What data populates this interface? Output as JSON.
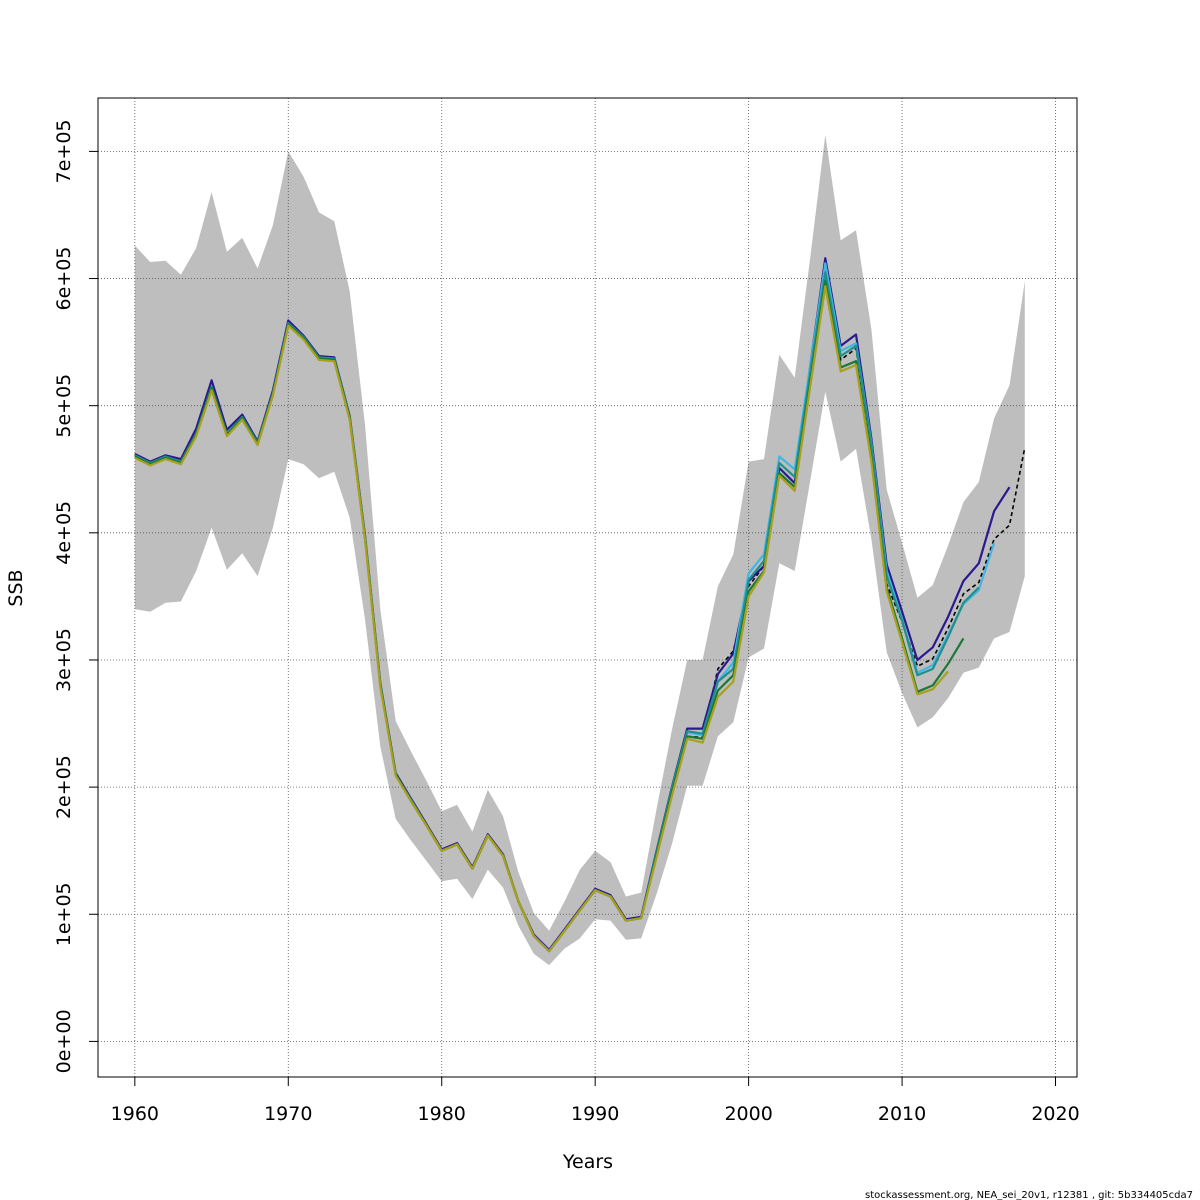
{
  "chart_data": {
    "type": "line",
    "title": "",
    "xlabel": "Years",
    "ylabel": "SSB",
    "xlim": [
      1957.6,
      2021.4
    ],
    "ylim": [
      -28000,
      742000
    ],
    "xticks": [
      1960,
      1970,
      1980,
      1990,
      2000,
      2010,
      2020
    ],
    "xtick_labels": [
      "1960",
      "1970",
      "1980",
      "1990",
      "2000",
      "2010",
      "2020"
    ],
    "yticks": [
      0,
      100000,
      200000,
      300000,
      400000,
      500000,
      600000,
      700000
    ],
    "ytick_labels": [
      "0e+00",
      "1e+05",
      "2e+05",
      "3e+05",
      "4e+05",
      "5e+05",
      "6e+05",
      "7e+05"
    ],
    "grid": true,
    "footer": "stockassessment.org, NEA_sei_20v1, r12381 , git: 5b334405cda7",
    "band": {
      "name": "confidence interval",
      "color": "#bebebe",
      "x": [
        1960,
        1961,
        1962,
        1963,
        1964,
        1965,
        1966,
        1967,
        1968,
        1969,
        1970,
        1971,
        1972,
        1973,
        1974,
        1975,
        1976,
        1977,
        1978,
        1979,
        1980,
        1981,
        1982,
        1983,
        1984,
        1985,
        1986,
        1987,
        1988,
        1989,
        1990,
        1991,
        1992,
        1993,
        1994,
        1995,
        1996,
        1997,
        1998,
        1999,
        2000,
        2001,
        2002,
        2003,
        2004,
        2005,
        2006,
        2007,
        2008,
        2009,
        2010,
        2011,
        2012,
        2013,
        2014,
        2015,
        2016,
        2017,
        2018
      ],
      "upper": [
        626000,
        613000,
        614000,
        603000,
        624000,
        668000,
        621000,
        632000,
        608000,
        642000,
        700000,
        680000,
        652000,
        645000,
        590000,
        485000,
        340000,
        252000,
        228000,
        205000,
        181000,
        186000,
        165000,
        198000,
        177000,
        133000,
        101000,
        87000,
        110000,
        135000,
        150000,
        141000,
        114000,
        117000,
        183000,
        245000,
        300000,
        300000,
        358000,
        383000,
        456000,
        458000,
        540000,
        522000,
        615000,
        713000,
        630000,
        638000,
        560000,
        434000,
        392000,
        349000,
        359000,
        390000,
        424000,
        440000,
        490000,
        516000,
        598000
      ],
      "lower": [
        340000,
        338000,
        345000,
        346000,
        370000,
        404000,
        371000,
        384000,
        366000,
        404000,
        458000,
        454000,
        443000,
        448000,
        412000,
        332000,
        232000,
        175000,
        158000,
        142000,
        126000,
        128000,
        112000,
        135000,
        121000,
        91000,
        69000,
        60000,
        73000,
        81000,
        96000,
        95000,
        80000,
        81000,
        116000,
        155000,
        201000,
        201000,
        240000,
        251000,
        302000,
        309000,
        376000,
        370000,
        440000,
        511000,
        456000,
        466000,
        395000,
        306000,
        274000,
        247000,
        255000,
        270000,
        290000,
        294000,
        317000,
        322000,
        366000
      ]
    },
    "series": [
      {
        "name": "dashed black",
        "color": "#000000",
        "dash": true,
        "x": [
          1996,
          1997,
          1998,
          1999,
          2000,
          2001,
          2002,
          2003,
          2004,
          2005,
          2006,
          2007,
          2008,
          2009,
          2010,
          2011,
          2012,
          2013,
          2014,
          2015,
          2016,
          2017,
          2018
        ],
        "values": [
          240000,
          239000,
          293000,
          307000,
          358000,
          374000,
          451000,
          439000,
          523000,
          603000,
          536000,
          545000,
          466000,
          360000,
          330000,
          295000,
          301000,
          325000,
          352000,
          361000,
          395000,
          406000,
          467000
        ]
      },
      {
        "name": "navy",
        "color": "#2a1a8f",
        "dash": false,
        "x": [
          1960,
          1961,
          1962,
          1963,
          1964,
          1965,
          1966,
          1967,
          1968,
          1969,
          1970,
          1971,
          1972,
          1973,
          1974,
          1975,
          1976,
          1977,
          1978,
          1979,
          1980,
          1981,
          1982,
          1983,
          1984,
          1985,
          1986,
          1987,
          1988,
          1989,
          1990,
          1991,
          1992,
          1993,
          1994,
          1995,
          1996,
          1997,
          1998,
          1999,
          2000,
          2001,
          2002,
          2003,
          2004,
          2005,
          2006,
          2007,
          2008,
          2009,
          2010,
          2011,
          2012,
          2013,
          2014,
          2015,
          2016,
          2017
        ],
        "values": [
          462000,
          456000,
          461000,
          458000,
          482000,
          520000,
          481000,
          493000,
          472000,
          512000,
          567000,
          555000,
          539000,
          538000,
          492000,
          398000,
          282000,
          211000,
          191000,
          171000,
          151000,
          156000,
          137000,
          163000,
          147000,
          110000,
          84000,
          72000,
          88000,
          104000,
          120000,
          115000,
          96000,
          98000,
          150000,
          200000,
          246000,
          246000,
          289000,
          305000,
          362000,
          374000,
          451000,
          439000,
          530000,
          616000,
          547000,
          556000,
          474000,
          375000,
          338000,
          300000,
          310000,
          334000,
          362000,
          376000,
          417000,
          436000
        ]
      },
      {
        "name": "light blue",
        "color": "#41b6e6",
        "dash": false,
        "x": [
          1995,
          1996,
          1997,
          1998,
          1999,
          2000,
          2001,
          2002,
          2003,
          2004,
          2005,
          2006,
          2007,
          2008,
          2009,
          2010,
          2011,
          2012,
          2013,
          2014,
          2015,
          2016
        ],
        "values": [
          199000,
          243000,
          241000,
          283000,
          298000,
          368000,
          383000,
          460000,
          450000,
          530000,
          612000,
          543000,
          549000,
          471000,
          370000,
          332000,
          290000,
          296000,
          320000,
          344000,
          355000,
          392000
        ]
      },
      {
        "name": "teal",
        "color": "#21908c",
        "dash": false,
        "x": [
          1960,
          1961,
          1962,
          1963,
          1964,
          1965,
          1966,
          1967,
          1968,
          1969,
          1970,
          1971,
          1972,
          1973,
          1974,
          1975,
          1976,
          1977,
          1978,
          1979,
          1980,
          1981,
          1982,
          1983,
          1984,
          1985,
          1986,
          1987,
          1988,
          1989,
          1990,
          1991,
          1992,
          1993,
          1994,
          1995,
          1996,
          1997,
          1998,
          1999,
          2000,
          2001,
          2002,
          2003,
          2004,
          2005,
          2006,
          2007,
          2008,
          2009,
          2010,
          2011,
          2012,
          2013,
          2014,
          2015
        ],
        "values": [
          461000,
          455000,
          460000,
          456000,
          478000,
          515000,
          478000,
          491000,
          471000,
          510000,
          565000,
          554000,
          538000,
          537000,
          491000,
          397000,
          281000,
          210000,
          190000,
          170000,
          150000,
          155000,
          136000,
          162000,
          146000,
          110000,
          83000,
          71000,
          87000,
          103000,
          119000,
          114000,
          95000,
          97000,
          149000,
          199000,
          244000,
          242000,
          283000,
          293000,
          363000,
          378000,
          455000,
          444000,
          525000,
          605000,
          539000,
          547000,
          470000,
          366000,
          331000,
          288000,
          293000,
          318000,
          345000,
          357000
        ]
      },
      {
        "name": "green",
        "color": "#1b7837",
        "dash": false,
        "x": [
          1960,
          1961,
          1962,
          1963,
          1964,
          1965,
          1966,
          1967,
          1968,
          1969,
          1970,
          1971,
          1972,
          1973,
          1974,
          1975,
          1976,
          1977,
          1978,
          1979,
          1980,
          1981,
          1982,
          1983,
          1984,
          1985,
          1986,
          1987,
          1988,
          1989,
          1990,
          1991,
          1992,
          1993,
          1994,
          1995,
          1996,
          1997,
          1998,
          1999,
          2000,
          2001,
          2002,
          2003,
          2004,
          2005,
          2006,
          2007,
          2008,
          2009,
          2010,
          2011,
          2012,
          2013,
          2014
        ],
        "values": [
          460000,
          454000,
          459000,
          455000,
          477000,
          514000,
          477000,
          490000,
          470000,
          509000,
          564000,
          553000,
          537000,
          536000,
          490000,
          396000,
          280000,
          210000,
          189000,
          170000,
          150000,
          155000,
          136000,
          162000,
          146000,
          110000,
          83000,
          71000,
          87000,
          103000,
          119000,
          114000,
          95000,
          97000,
          147000,
          196000,
          240000,
          238000,
          276000,
          288000,
          354000,
          370000,
          447000,
          436000,
          518000,
          598000,
          530000,
          535000,
          459000,
          357000,
          317000,
          275000,
          280000,
          297000,
          317000
        ]
      },
      {
        "name": "olive",
        "color": "#a8a01a",
        "dash": false,
        "x": [
          1960,
          1961,
          1962,
          1963,
          1964,
          1965,
          1966,
          1967,
          1968,
          1969,
          1970,
          1971,
          1972,
          1973,
          1974,
          1975,
          1976,
          1977,
          1978,
          1979,
          1980,
          1981,
          1982,
          1983,
          1984,
          1985,
          1986,
          1987,
          1988,
          1989,
          1990,
          1991,
          1992,
          1993,
          1994,
          1995,
          1996,
          1997,
          1998,
          1999,
          2000,
          2001,
          2002,
          2003,
          2004,
          2005,
          2006,
          2007,
          2008,
          2009,
          2010,
          2011,
          2012,
          2013
        ],
        "values": [
          459000,
          453000,
          458000,
          454000,
          476000,
          512000,
          476000,
          489000,
          469000,
          508000,
          563000,
          552000,
          536000,
          535000,
          489000,
          395000,
          279000,
          209000,
          189000,
          170000,
          150000,
          155000,
          136000,
          162000,
          146000,
          110000,
          83000,
          71000,
          87000,
          103000,
          119000,
          114000,
          95000,
          97000,
          145000,
          193000,
          238000,
          235000,
          271000,
          283000,
          350000,
          369000,
          445000,
          433000,
          514000,
          594000,
          527000,
          532000,
          456000,
          354000,
          314000,
          273000,
          277000,
          291000
        ]
      }
    ]
  }
}
